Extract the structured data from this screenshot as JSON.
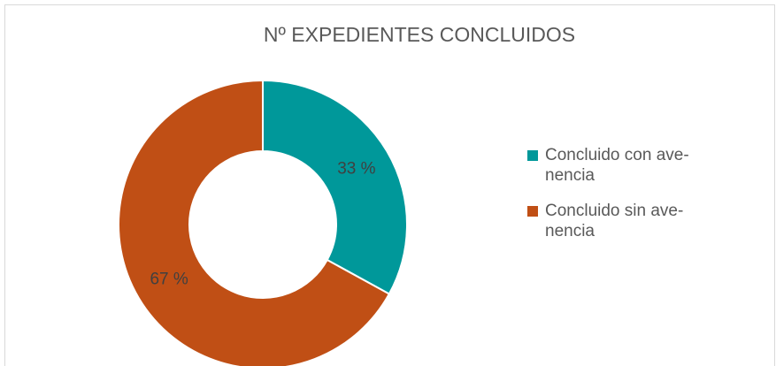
{
  "chart_data": {
    "type": "donut",
    "title": "Nº EXPEDIENTES CONCLUIDOS",
    "categories": [
      "Concluido con ave-nencia",
      "Concluido sin ave-nencia"
    ],
    "values": [
      33,
      67
    ],
    "value_labels": [
      "33 %",
      "67 %"
    ],
    "colors": [
      "#00989a",
      "#c04f15"
    ],
    "legend": "right"
  }
}
